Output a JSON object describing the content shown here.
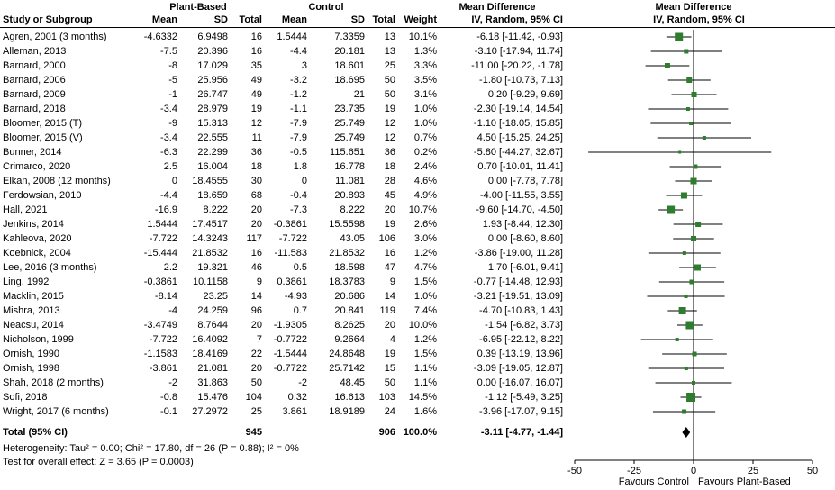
{
  "header": {
    "col_study": "Study or Subgroup",
    "group1": "Plant-Based",
    "group2": "Control",
    "mean": "Mean",
    "sd": "SD",
    "total": "Total",
    "weight": "Weight",
    "md_title": "Mean Difference",
    "md_sub": "IV, Random, 95% CI"
  },
  "footer": {
    "total_label": "Total (95% CI)",
    "total_n1": "945",
    "total_n2": "906",
    "total_weight": "100.0%",
    "total_ci": "-3.11 [-4.77, -1.44]",
    "heterogeneity": "Heterogeneity: Tau² = 0.00; Chi² = 17.80, df = 26 (P = 0.88); I² = 0%",
    "overall_effect": "Test for overall effect: Z = 3.65 (P = 0.0003)",
    "favours_left": "Favours Control",
    "favours_right": "Favours Plant-Based"
  },
  "chart_data": {
    "type": "forest",
    "effect_measure": "Mean Difference, IV, Random, 95% CI",
    "xlim": [
      -50,
      50
    ],
    "x_ticks": [
      -50,
      -25,
      0,
      25,
      50
    ],
    "marker_color": "#2e7d2e",
    "diamond_color": "#000000",
    "studies": [
      {
        "name": "Agren, 2001 (3 months)",
        "mean1": "-4.6332",
        "sd1": "6.9498",
        "n1": "16",
        "mean2": "1.5444",
        "sd2": "7.3359",
        "n2": "13",
        "weight": "10.1%",
        "ci_text": "-6.18 [-11.42, -0.93]",
        "md": -6.18,
        "lo": -11.42,
        "hi": -0.93,
        "w": 10.1
      },
      {
        "name": "Alleman, 2013",
        "mean1": "-7.5",
        "sd1": "20.396",
        "n1": "16",
        "mean2": "-4.4",
        "sd2": "20.181",
        "n2": "13",
        "weight": "1.3%",
        "ci_text": "-3.10 [-17.94, 11.74]",
        "md": -3.1,
        "lo": -17.94,
        "hi": 11.74,
        "w": 1.3
      },
      {
        "name": "Barnard, 2000",
        "mean1": "-8",
        "sd1": "17.029",
        "n1": "35",
        "mean2": "3",
        "sd2": "18.601",
        "n2": "25",
        "weight": "3.3%",
        "ci_text": "-11.00 [-20.22, -1.78]",
        "md": -11.0,
        "lo": -20.22,
        "hi": -1.78,
        "w": 3.3
      },
      {
        "name": "Barnard, 2006",
        "mean1": "-5",
        "sd1": "25.956",
        "n1": "49",
        "mean2": "-3.2",
        "sd2": "18.695",
        "n2": "50",
        "weight": "3.5%",
        "ci_text": "-1.80 [-10.73, 7.13]",
        "md": -1.8,
        "lo": -10.73,
        "hi": 7.13,
        "w": 3.5
      },
      {
        "name": "Barnard, 2009",
        "mean1": "-1",
        "sd1": "26.747",
        "n1": "49",
        "mean2": "-1.2",
        "sd2": "21",
        "n2": "50",
        "weight": "3.1%",
        "ci_text": "0.20 [-9.29, 9.69]",
        "md": 0.2,
        "lo": -9.29,
        "hi": 9.69,
        "w": 3.1
      },
      {
        "name": "Barnard, 2018",
        "mean1": "-3.4",
        "sd1": "28.979",
        "n1": "19",
        "mean2": "-1.1",
        "sd2": "23.735",
        "n2": "19",
        "weight": "1.0%",
        "ci_text": "-2.30 [-19.14, 14.54]",
        "md": -2.3,
        "lo": -19.14,
        "hi": 14.54,
        "w": 1.0
      },
      {
        "name": "Bloomer, 2015 (T)",
        "mean1": "-9",
        "sd1": "15.313",
        "n1": "12",
        "mean2": "-7.9",
        "sd2": "25.749",
        "n2": "12",
        "weight": "1.0%",
        "ci_text": "-1.10 [-18.05, 15.85]",
        "md": -1.1,
        "lo": -18.05,
        "hi": 15.85,
        "w": 1.0
      },
      {
        "name": "Bloomer, 2015 (V)",
        "mean1": "-3.4",
        "sd1": "22.555",
        "n1": "11",
        "mean2": "-7.9",
        "sd2": "25.749",
        "n2": "12",
        "weight": "0.7%",
        "ci_text": "4.50 [-15.25, 24.25]",
        "md": 4.5,
        "lo": -15.25,
        "hi": 24.25,
        "w": 0.7
      },
      {
        "name": "Bunner, 2014",
        "mean1": "-6.3",
        "sd1": "22.299",
        "n1": "36",
        "mean2": "-0.5",
        "sd2": "115.651",
        "n2": "36",
        "weight": "0.2%",
        "ci_text": "-5.80 [-44.27, 32.67]",
        "md": -5.8,
        "lo": -44.27,
        "hi": 32.67,
        "w": 0.2
      },
      {
        "name": "Crimarco, 2020",
        "mean1": "2.5",
        "sd1": "16.004",
        "n1": "18",
        "mean2": "1.8",
        "sd2": "16.778",
        "n2": "18",
        "weight": "2.4%",
        "ci_text": "0.70 [-10.01, 11.41]",
        "md": 0.7,
        "lo": -10.01,
        "hi": 11.41,
        "w": 2.4
      },
      {
        "name": "Elkan, 2008 (12 months)",
        "mean1": "0",
        "sd1": "18.4555",
        "n1": "30",
        "mean2": "0",
        "sd2": "11.081",
        "n2": "28",
        "weight": "4.6%",
        "ci_text": "0.00 [-7.78, 7.78]",
        "md": 0.0,
        "lo": -7.78,
        "hi": 7.78,
        "w": 4.6
      },
      {
        "name": "Ferdowsian, 2010",
        "mean1": "-4.4",
        "sd1": "18.659",
        "n1": "68",
        "mean2": "-0.4",
        "sd2": "20.893",
        "n2": "45",
        "weight": "4.9%",
        "ci_text": "-4.00 [-11.55, 3.55]",
        "md": -4.0,
        "lo": -11.55,
        "hi": 3.55,
        "w": 4.9
      },
      {
        "name": "Hall, 2021",
        "mean1": "-16.9",
        "sd1": "8.222",
        "n1": "20",
        "mean2": "-7.3",
        "sd2": "8.222",
        "n2": "20",
        "weight": "10.7%",
        "ci_text": "-9.60 [-14.70, -4.50]",
        "md": -9.6,
        "lo": -14.7,
        "hi": -4.5,
        "w": 10.7
      },
      {
        "name": "Jenkins, 2014",
        "mean1": "1.5444",
        "sd1": "17.4517",
        "n1": "20",
        "mean2": "-0.3861",
        "sd2": "15.5598",
        "n2": "19",
        "weight": "2.6%",
        "ci_text": "1.93 [-8.44, 12.30]",
        "md": 1.93,
        "lo": -8.44,
        "hi": 12.3,
        "w": 2.6
      },
      {
        "name": "Kahleova, 2020",
        "mean1": "-7.722",
        "sd1": "14.3243",
        "n1": "117",
        "mean2": "-7.722",
        "sd2": "43.05",
        "n2": "106",
        "weight": "3.0%",
        "ci_text": "0.00 [-8.60, 8.60]",
        "md": 0.0,
        "lo": -8.6,
        "hi": 8.6,
        "w": 3.0
      },
      {
        "name": "Koebnick, 2004",
        "mean1": "-15.444",
        "sd1": "21.8532",
        "n1": "16",
        "mean2": "-11.583",
        "sd2": "21.8532",
        "n2": "16",
        "weight": "1.2%",
        "ci_text": "-3.86 [-19.00, 11.28]",
        "md": -3.86,
        "lo": -19.0,
        "hi": 11.28,
        "w": 1.2
      },
      {
        "name": "Lee, 2016 (3 months)",
        "mean1": "2.2",
        "sd1": "19.321",
        "n1": "46",
        "mean2": "0.5",
        "sd2": "18.598",
        "n2": "47",
        "weight": "4.7%",
        "ci_text": "1.70 [-6.01, 9.41]",
        "md": 1.7,
        "lo": -6.01,
        "hi": 9.41,
        "w": 4.7
      },
      {
        "name": "Ling, 1992",
        "mean1": "-0.3861",
        "sd1": "10.1158",
        "n1": "9",
        "mean2": "0.3861",
        "sd2": "18.3783",
        "n2": "9",
        "weight": "1.5%",
        "ci_text": "-0.77 [-14.48, 12.93]",
        "md": -0.77,
        "lo": -14.48,
        "hi": 12.93,
        "w": 1.5
      },
      {
        "name": "Macklin, 2015",
        "mean1": "-8.14",
        "sd1": "23.25",
        "n1": "14",
        "mean2": "-4.93",
        "sd2": "20.686",
        "n2": "14",
        "weight": "1.0%",
        "ci_text": "-3.21 [-19.51, 13.09]",
        "md": -3.21,
        "lo": -19.51,
        "hi": 13.09,
        "w": 1.0
      },
      {
        "name": "Mishra, 2013",
        "mean1": "-4",
        "sd1": "24.259",
        "n1": "96",
        "mean2": "0.7",
        "sd2": "20.841",
        "n2": "119",
        "weight": "7.4%",
        "ci_text": "-4.70 [-10.83, 1.43]",
        "md": -4.7,
        "lo": -10.83,
        "hi": 1.43,
        "w": 7.4
      },
      {
        "name": "Neacsu, 2014",
        "mean1": "-3.4749",
        "sd1": "8.7644",
        "n1": "20",
        "mean2": "-1.9305",
        "sd2": "8.2625",
        "n2": "20",
        "weight": "10.0%",
        "ci_text": "-1.54 [-6.82, 3.73]",
        "md": -1.54,
        "lo": -6.82,
        "hi": 3.73,
        "w": 10.0
      },
      {
        "name": "Nicholson, 1999",
        "mean1": "-7.722",
        "sd1": "16.4092",
        "n1": "7",
        "mean2": "-0.7722",
        "sd2": "9.2664",
        "n2": "4",
        "weight": "1.2%",
        "ci_text": "-6.95 [-22.12, 8.22]",
        "md": -6.95,
        "lo": -22.12,
        "hi": 8.22,
        "w": 1.2
      },
      {
        "name": "Ornish, 1990",
        "mean1": "-1.1583",
        "sd1": "18.4169",
        "n1": "22",
        "mean2": "-1.5444",
        "sd2": "24.8648",
        "n2": "19",
        "weight": "1.5%",
        "ci_text": "0.39 [-13.19, 13.96]",
        "md": 0.39,
        "lo": -13.19,
        "hi": 13.96,
        "w": 1.5
      },
      {
        "name": "Ornish, 1998",
        "mean1": "-3.861",
        "sd1": "21.081",
        "n1": "20",
        "mean2": "-0.7722",
        "sd2": "25.7142",
        "n2": "15",
        "weight": "1.1%",
        "ci_text": "-3.09 [-19.05, 12.87]",
        "md": -3.09,
        "lo": -19.05,
        "hi": 12.87,
        "w": 1.1
      },
      {
        "name": "Shah, 2018 (2 months)",
        "mean1": "-2",
        "sd1": "31.863",
        "n1": "50",
        "mean2": "-2",
        "sd2": "48.45",
        "n2": "50",
        "weight": "1.1%",
        "ci_text": "0.00 [-16.07, 16.07]",
        "md": 0.0,
        "lo": -16.07,
        "hi": 16.07,
        "w": 1.1
      },
      {
        "name": "Sofi, 2018",
        "mean1": "-0.8",
        "sd1": "15.476",
        "n1": "104",
        "mean2": "0.32",
        "sd2": "16.613",
        "n2": "103",
        "weight": "14.5%",
        "ci_text": "-1.12 [-5.49, 3.25]",
        "md": -1.12,
        "lo": -5.49,
        "hi": 3.25,
        "w": 14.5
      },
      {
        "name": "Wright, 2017 (6 months)",
        "mean1": "-0.1",
        "sd1": "27.2972",
        "n1": "25",
        "mean2": "3.861",
        "sd2": "18.9189",
        "n2": "24",
        "weight": "1.6%",
        "ci_text": "-3.96 [-17.07, 9.15]",
        "md": -3.96,
        "lo": -17.07,
        "hi": 9.15,
        "w": 1.6
      }
    ],
    "total": {
      "md": -3.11,
      "lo": -4.77,
      "hi": -1.44
    }
  }
}
